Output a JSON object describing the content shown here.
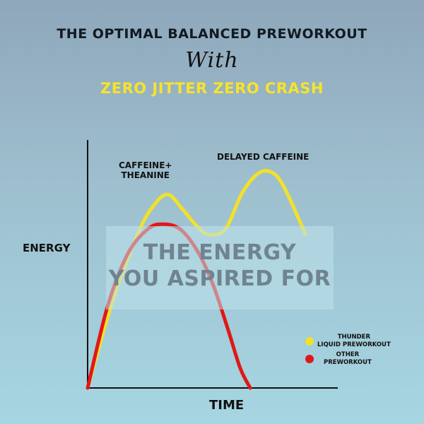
{
  "header": {
    "title": "THE OPTIMAL BALANCED PREWORKOUT",
    "with": "With",
    "subtitle": "ZERO JITTER ZERO CRASH"
  },
  "colors": {
    "thunder": "#f2e12a",
    "other": "#e01818",
    "subtitle": "#f7e32a"
  },
  "overlay": {
    "line1": "THE ENERGY",
    "line2": "YOU ASPIRED FOR"
  },
  "chart_data": {
    "type": "line",
    "title": "THE OPTIMAL BALANCED PREWORKOUT",
    "xlabel": "TIME",
    "ylabel": "ENERGY",
    "xlim": [
      0,
      100
    ],
    "ylim": [
      0,
      100
    ],
    "grid": false,
    "legend_position": "bottom-right",
    "series": [
      {
        "name": "THUNDER LIQUID PREWORKOUT",
        "color": "#f2e12a",
        "x": [
          0,
          10,
          20,
          26,
          32,
          38,
          43,
          48,
          55,
          62,
          69,
          75,
          80,
          87
        ],
        "y": [
          0,
          35,
          62,
          73,
          78,
          72,
          66,
          62,
          64,
          79,
          87,
          86,
          78,
          62
        ]
      },
      {
        "name": "OTHER PREWORKOUT",
        "color": "#e01818",
        "x": [
          0,
          8,
          16,
          24,
          30,
          37,
          44,
          50,
          56,
          61,
          65
        ],
        "y": [
          0,
          33,
          54,
          64,
          66,
          64,
          55,
          42,
          24,
          8,
          0
        ]
      }
    ],
    "annotations": [
      {
        "label_line1": "CAFFEINE+",
        "label_line2": "THEANINE"
      },
      {
        "label": "DELAYED CAFFEINE"
      }
    ],
    "legend": [
      {
        "name": "THUNDER LIQUID PREWORKOUT",
        "line1": "THUNDER",
        "line2": "LIQUID PREWORKOUT"
      },
      {
        "name": "OTHER PREWORKOUT",
        "line1": "OTHER",
        "line2": "PREWORKOUT"
      }
    ]
  }
}
